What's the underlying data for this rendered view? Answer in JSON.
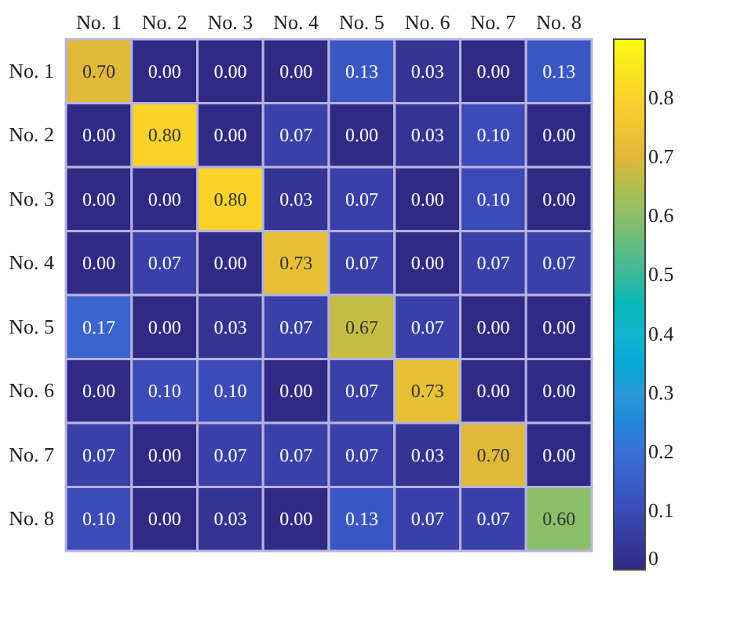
{
  "chart_data": {
    "type": "heatmap",
    "categories": [
      "No. 1",
      "No. 2",
      "No. 3",
      "No. 4",
      "No. 5",
      "No. 6",
      "No. 7",
      "No. 8"
    ],
    "y_categories": [
      "No. 1",
      "No. 2",
      "No. 3",
      "No. 4",
      "No. 5",
      "No. 6",
      "No. 7",
      "No. 8"
    ],
    "cells": [
      [
        0.7,
        0.0,
        0.0,
        0.0,
        0.13,
        0.03,
        0.0,
        0.13
      ],
      [
        0.0,
        0.8,
        0.0,
        0.07,
        0.0,
        0.03,
        0.1,
        0.0
      ],
      [
        0.0,
        0.0,
        0.8,
        0.03,
        0.07,
        0.0,
        0.1,
        0.0
      ],
      [
        0.0,
        0.07,
        0.0,
        0.73,
        0.07,
        0.0,
        0.07,
        0.07
      ],
      [
        0.17,
        0.0,
        0.03,
        0.07,
        0.67,
        0.07,
        0.0,
        0.0
      ],
      [
        0.0,
        0.1,
        0.1,
        0.0,
        0.07,
        0.73,
        0.0,
        0.0
      ],
      [
        0.07,
        0.0,
        0.07,
        0.07,
        0.07,
        0.03,
        0.7,
        0.0
      ],
      [
        0.1,
        0.0,
        0.03,
        0.0,
        0.13,
        0.07,
        0.07,
        0.6
      ]
    ],
    "cell_labels": [
      [
        "0.70",
        "0.00",
        "0.00",
        "0.00",
        "0.13",
        "0.03",
        "0.00",
        "0.13"
      ],
      [
        "0.00",
        "0.80",
        "0.00",
        "0.07",
        "0.00",
        "0.03",
        "0.10",
        "0.00"
      ],
      [
        "0.00",
        "0.00",
        "0.80",
        "0.03",
        "0.07",
        "0.00",
        "0.10",
        "0.00"
      ],
      [
        "0.00",
        "0.07",
        "0.00",
        "0.73",
        "0.07",
        "0.00",
        "0.07",
        "0.07"
      ],
      [
        "0.17",
        "0.00",
        "0.03",
        "0.07",
        "0.67",
        "0.07",
        "0.00",
        "0.00"
      ],
      [
        "0.00",
        "0.10",
        "0.10",
        "0.00",
        "0.07",
        "0.73",
        "0.00",
        "0.00"
      ],
      [
        "0.07",
        "0.00",
        "0.07",
        "0.07",
        "0.07",
        "0.03",
        "0.70",
        "0.00"
      ],
      [
        "0.10",
        "0.00",
        "0.03",
        "0.00",
        "0.13",
        "0.07",
        "0.07",
        "0.60"
      ]
    ],
    "clim": [
      0,
      0.9
    ],
    "cticks": [
      0,
      0.1,
      0.2,
      0.3,
      0.4,
      0.5,
      0.6,
      0.7,
      0.8
    ]
  }
}
